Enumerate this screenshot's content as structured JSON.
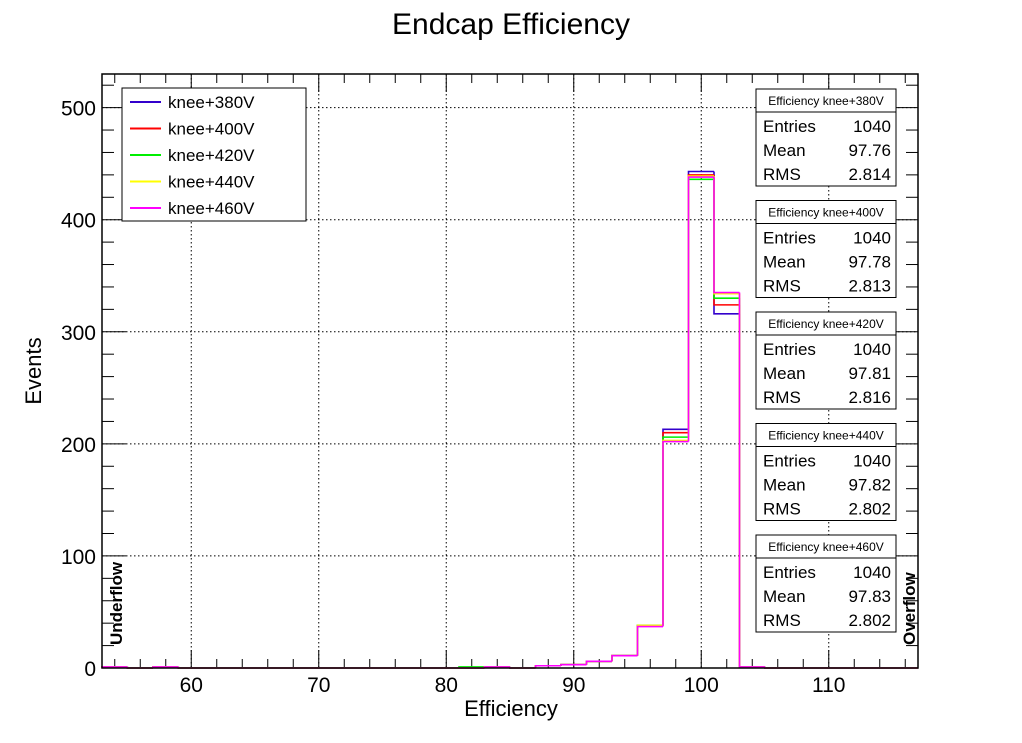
{
  "chart_data": {
    "type": "histogram",
    "title": "Endcap Efficiency",
    "xlabel": "Efficiency",
    "ylabel": "Events",
    "xlim": [
      53,
      117
    ],
    "ylim": [
      0,
      530
    ],
    "x_ticks": [
      60,
      70,
      80,
      90,
      100,
      110
    ],
    "y_ticks": [
      0,
      100,
      200,
      300,
      400,
      500
    ],
    "grid": true,
    "bin_edges": [
      53,
      55,
      57,
      59,
      61,
      63,
      65,
      67,
      69,
      71,
      73,
      75,
      77,
      79,
      81,
      83,
      85,
      87,
      89,
      91,
      93,
      95,
      97,
      99,
      101,
      103,
      105,
      107,
      109,
      111,
      113,
      115,
      117
    ],
    "underflow_label": "Underflow",
    "overflow_label": "Overflow",
    "legend_position": "top-left",
    "series": [
      {
        "name": "knee+380V",
        "color": "#3300cc",
        "values": [
          1,
          0,
          1,
          0,
          0,
          0,
          0,
          0,
          0,
          0,
          0,
          0,
          0,
          0,
          0,
          1,
          0,
          2,
          3,
          6,
          11,
          38,
          213,
          443,
          316,
          1,
          0,
          0,
          0,
          0,
          0,
          0
        ]
      },
      {
        "name": "knee+400V",
        "color": "#ff0000",
        "values": [
          1,
          0,
          1,
          0,
          0,
          0,
          0,
          0,
          0,
          0,
          0,
          0,
          0,
          0,
          0,
          1,
          0,
          2,
          3,
          6,
          11,
          38,
          210,
          440,
          324,
          1,
          0,
          0,
          0,
          0,
          0,
          0
        ]
      },
      {
        "name": "knee+420V",
        "color": "#00ee00",
        "values": [
          1,
          0,
          1,
          0,
          0,
          0,
          0,
          0,
          0,
          0,
          0,
          0,
          0,
          0,
          1,
          1,
          0,
          2,
          3,
          6,
          11,
          38,
          206,
          436,
          330,
          1,
          0,
          0,
          0,
          0,
          0,
          0
        ]
      },
      {
        "name": "knee+440V",
        "color": "#ffff00",
        "values": [
          1,
          0,
          1,
          0,
          0,
          0,
          0,
          0,
          0,
          0,
          0,
          0,
          0,
          0,
          0,
          1,
          0,
          2,
          3,
          6,
          11,
          38,
          203,
          439,
          334,
          1,
          0,
          0,
          0,
          0,
          0,
          0
        ]
      },
      {
        "name": "knee+460V",
        "color": "#ff00ff",
        "values": [
          1,
          0,
          1,
          0,
          0,
          0,
          0,
          0,
          0,
          0,
          0,
          0,
          0,
          0,
          0,
          1,
          0,
          2,
          3,
          6,
          11,
          37,
          202,
          438,
          335,
          1,
          0,
          0,
          0,
          0,
          0,
          0
        ]
      }
    ],
    "stats_boxes": [
      {
        "title": "Efficiency knee+380V",
        "rows": [
          [
            "Entries",
            "1040"
          ],
          [
            "Mean",
            "97.76"
          ],
          [
            "RMS",
            "2.814"
          ]
        ]
      },
      {
        "title": "Efficiency knee+400V",
        "rows": [
          [
            "Entries",
            "1040"
          ],
          [
            "Mean",
            "97.78"
          ],
          [
            "RMS",
            "2.813"
          ]
        ]
      },
      {
        "title": "Efficiency knee+420V",
        "rows": [
          [
            "Entries",
            "1040"
          ],
          [
            "Mean",
            "97.81"
          ],
          [
            "RMS",
            "2.816"
          ]
        ]
      },
      {
        "title": "Efficiency knee+440V",
        "rows": [
          [
            "Entries",
            "1040"
          ],
          [
            "Mean",
            "97.82"
          ],
          [
            "RMS",
            "2.802"
          ]
        ]
      },
      {
        "title": "Efficiency knee+460V",
        "rows": [
          [
            "Entries",
            "1040"
          ],
          [
            "Mean",
            "97.83"
          ],
          [
            "RMS",
            "2.802"
          ]
        ]
      }
    ]
  }
}
